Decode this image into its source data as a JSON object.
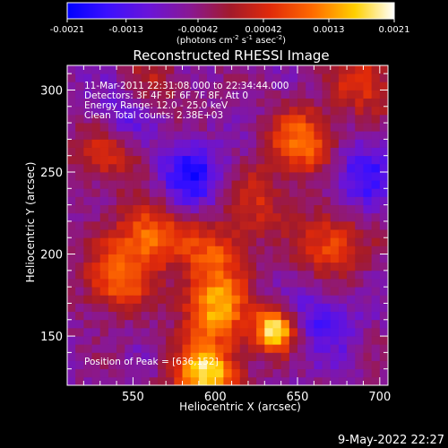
{
  "chart_data": {
    "type": "heatmap",
    "title": "Reconstructed RHESSI Image",
    "xlabel": "Heliocentric X (arcsec)",
    "ylabel": "Heliocentric Y (arcsec)",
    "xlim": [
      510,
      705
    ],
    "ylim": [
      120,
      315
    ],
    "x_ticks": [
      550,
      600,
      650,
      700
    ],
    "y_ticks": [
      150,
      200,
      250,
      300
    ],
    "colorbar": {
      "ticks": [
        "-0.0021",
        "-0.0013",
        "-0.00042",
        "0.00042",
        "0.0013",
        "0.0021"
      ],
      "range": [
        -0.0021,
        0.0021
      ],
      "units": "(photons cm",
      "units_sup1": "-2",
      "units_mid": " s",
      "units_sup2": "-1",
      "units_mid2": " asec",
      "units_sup3": "-2",
      "units_end": ")"
    },
    "annotations": [
      "11-Mar-2011 22:31:08.000 to 22:34:44.000",
      "Detectors: 3F 4F 5F 6F 7F 8F, Att 0",
      "Energy Range: 12.0 - 25.0 keV",
      "Clean     Total counts: 2.38E+03",
      "Position of Peak = [636,152]"
    ],
    "peak": {
      "x": 636,
      "y": 152
    },
    "bright_regions": [
      {
        "x": 636,
        "y": 154,
        "intensity": 1.0
      },
      {
        "x": 595,
        "y": 128,
        "intensity": 0.9
      },
      {
        "x": 600,
        "y": 168,
        "intensity": 0.75
      },
      {
        "x": 540,
        "y": 185,
        "intensity": 0.6
      },
      {
        "x": 560,
        "y": 212,
        "intensity": 0.65
      },
      {
        "x": 600,
        "y": 200,
        "intensity": 0.5
      },
      {
        "x": 653,
        "y": 268,
        "intensity": 0.65
      },
      {
        "x": 535,
        "y": 262,
        "intensity": 0.45
      },
      {
        "x": 670,
        "y": 205,
        "intensity": 0.55
      },
      {
        "x": 690,
        "y": 305,
        "intensity": 0.45
      },
      {
        "x": 625,
        "y": 232,
        "intensity": 0.35
      },
      {
        "x": 560,
        "y": 300,
        "intensity": 0.3
      }
    ],
    "dark_regions": [
      {
        "x": 585,
        "y": 248,
        "intensity": -0.5
      },
      {
        "x": 545,
        "y": 285,
        "intensity": -0.4
      },
      {
        "x": 690,
        "y": 248,
        "intensity": -0.4
      },
      {
        "x": 665,
        "y": 160,
        "intensity": -0.35
      }
    ]
  },
  "timestamp": "9-May-2022 22:27"
}
